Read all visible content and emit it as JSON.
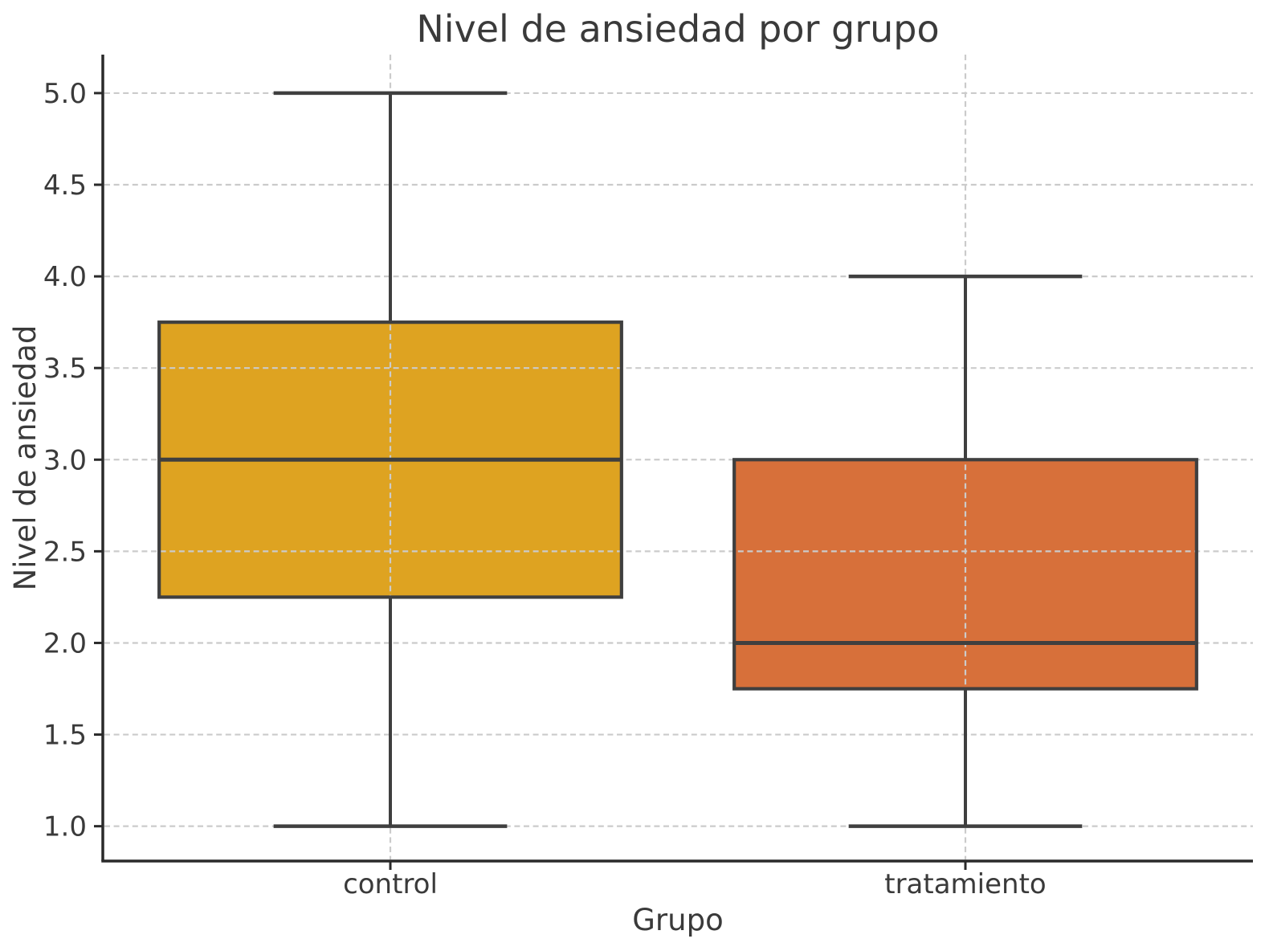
{
  "figure": {
    "background": "#ffffff"
  },
  "chart_data": {
    "type": "boxplot",
    "title": "Nivel de ansiedad por grupo",
    "xlabel": "Grupo",
    "ylabel": "Nivel de ansiedad",
    "categories": [
      "control",
      "tratamiento"
    ],
    "series": [
      {
        "name": "control",
        "whisker_low": 1.0,
        "q1": 2.25,
        "median": 3.0,
        "q3": 3.75,
        "whisker_high": 5.0,
        "outliers": [],
        "fill_color": "#DEA321"
      },
      {
        "name": "tratamiento",
        "whisker_low": 1.0,
        "q1": 1.75,
        "median": 2.0,
        "q3": 3.0,
        "whisker_high": 4.0,
        "outliers": [],
        "fill_color": "#D7703A"
      }
    ],
    "ytick_labels": [
      "5.0",
      "4.5",
      "4.0",
      "3.5",
      "3.0",
      "2.5",
      "2.0",
      "1.5",
      "1.0"
    ],
    "yticks": [
      5.0,
      4.5,
      4.0,
      3.5,
      3.0,
      2.5,
      2.0,
      1.5,
      1.0
    ],
    "ylim": [
      0.81,
      5.21
    ],
    "xlim": [
      -0.5,
      1.5
    ],
    "grid": {
      "show": true,
      "style": "dashed",
      "color": "#CBCBCB",
      "horizontal_at": [
        1.0,
        1.5,
        2.0,
        2.5,
        3.0,
        3.5,
        4.0,
        4.5,
        5.0
      ],
      "vertical_at_categories": true
    },
    "colors": {
      "box_edge": "#3F3F3F",
      "whisker": "#3F3F3F",
      "median": "#3F3F3F",
      "spine": "#2A2A2A",
      "text": "#3A3A3A"
    },
    "legend": "none"
  }
}
